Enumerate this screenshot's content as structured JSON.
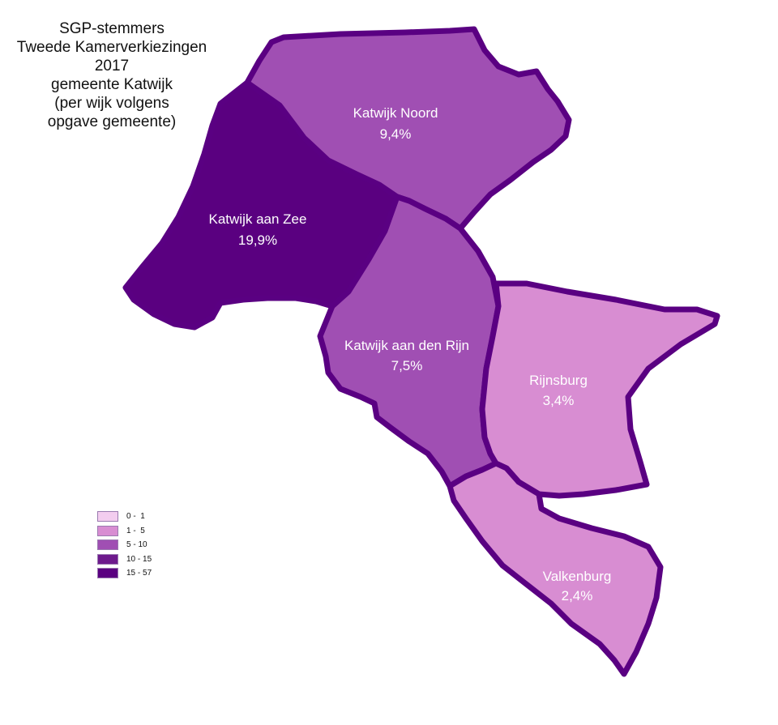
{
  "title": {
    "lines": [
      "SGP-stemmers",
      "Tweede Kamerverkiezingen",
      "2017",
      "gemeente Katwijk",
      "(per wijk volgens",
      "opgave gemeente)"
    ]
  },
  "colors": {
    "border": "#5a0082",
    "class_0_1": "#f3cdef",
    "class_1_5": "#d88dd2",
    "class_5_10": "#a04fb3",
    "class_10_15": "#6d1a8c",
    "class_15_57": "#5a0080",
    "label_text": "#ffffff"
  },
  "districts": [
    {
      "name": "Katwijk Noord",
      "value": "9,4%",
      "class": "5 - 10"
    },
    {
      "name": "Katwijk aan Zee",
      "value": "19,9%",
      "class": "15 - 57"
    },
    {
      "name": "Katwijk aan den Rijn",
      "value": "7,5%",
      "class": "5 - 10"
    },
    {
      "name": "Rijnsburg",
      "value": "3,4%",
      "class": "1 -  5"
    },
    {
      "name": "Valkenburg",
      "value": "2,4%",
      "class": "1 -  5"
    }
  ],
  "legend": {
    "items": [
      {
        "range": "0 -  1"
      },
      {
        "range": "1 -  5"
      },
      {
        "range": "5 - 10"
      },
      {
        "range": "10 - 15"
      },
      {
        "range": "15 - 57"
      }
    ]
  }
}
